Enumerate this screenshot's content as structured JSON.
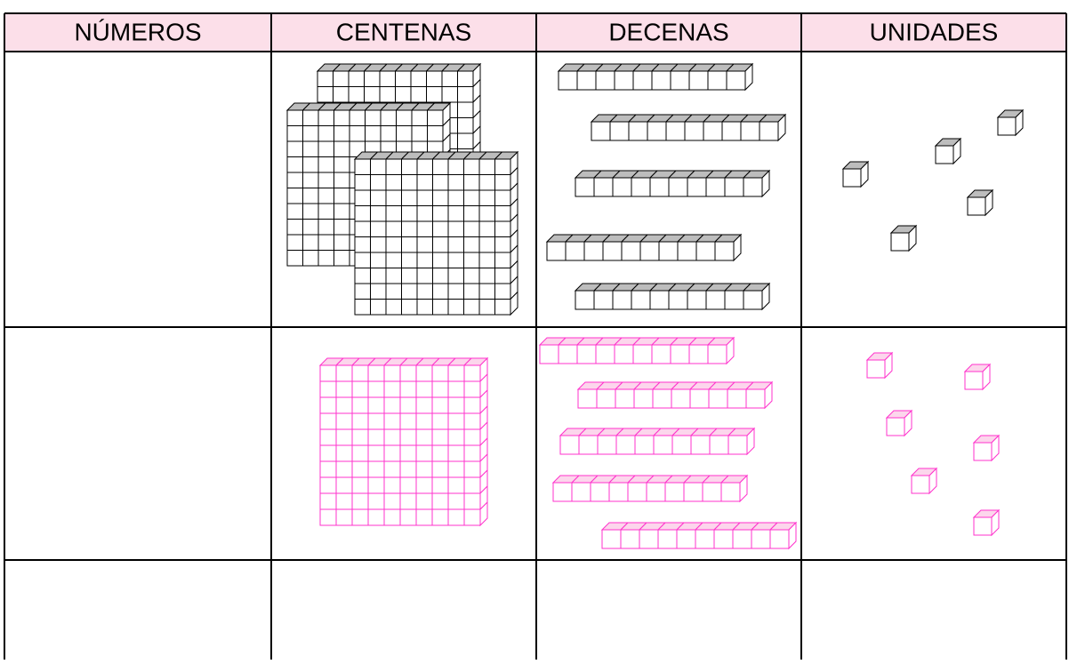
{
  "table": {
    "header": [
      "NÚMEROS",
      "CENTENAS",
      "DECENAS",
      "UNIDADES"
    ]
  }
}
